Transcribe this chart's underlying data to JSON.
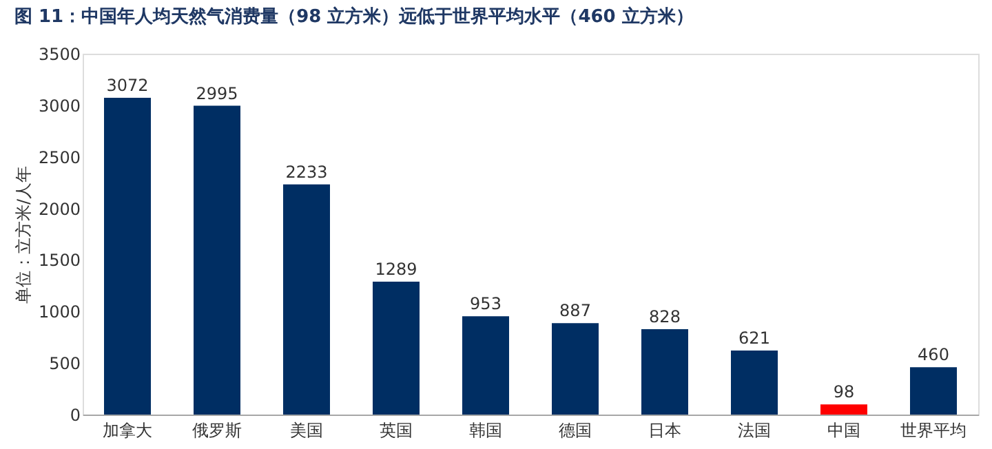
{
  "chart_data": {
    "type": "bar",
    "title": "图 11：中国年人均天然气消费量（98 立方米）远低于世界平均水平（460 立方米）",
    "ylabel": "单位：立方米/人年",
    "categories": [
      "加拿大",
      "俄罗斯",
      "美国",
      "英国",
      "韩国",
      "德国",
      "日本",
      "法国",
      "中国",
      "世界平均"
    ],
    "values": [
      3072,
      2995,
      2233,
      1289,
      953,
      887,
      828,
      621,
      98,
      460
    ],
    "colors": [
      "#002e63",
      "#002e63",
      "#002e63",
      "#002e63",
      "#002e63",
      "#002e63",
      "#002e63",
      "#002e63",
      "#ff0000",
      "#002e63"
    ],
    "ylim": [
      0,
      3500
    ],
    "yticks": [
      0,
      500,
      1000,
      1500,
      2000,
      2500,
      3000,
      3500
    ],
    "data_labels": true,
    "grid": false
  }
}
